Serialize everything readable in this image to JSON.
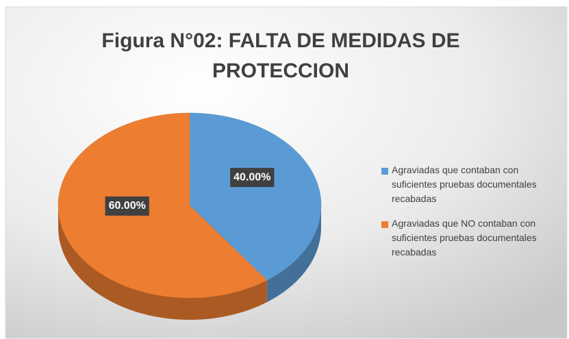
{
  "chart_data": {
    "type": "pie",
    "title": "Figura  N°02: FALTA DE MEDIDAS DE PROTECCION",
    "categories": [
      "Agraviadas que contaban con suficientes pruebas documentales recabadas",
      "Agraviadas que NO contaban con suficientes pruebas documentales recabadas"
    ],
    "values": [
      40,
      60
    ],
    "value_labels": [
      "40.00%",
      "60.00%"
    ],
    "colors": [
      "#5b9bd5",
      "#ed7d31"
    ],
    "legend": "right"
  }
}
